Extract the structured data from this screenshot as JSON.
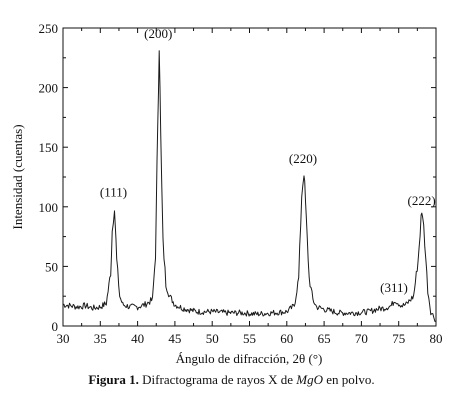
{
  "chart_data": {
    "type": "line",
    "xlabel": "Ángulo de difracción, 2θ (°)",
    "ylabel": "Intensidad (cuentas)",
    "xlim": [
      30,
      80
    ],
    "ylim": [
      0,
      250
    ],
    "x_ticks": [
      30,
      35,
      40,
      45,
      50,
      55,
      60,
      65,
      70,
      75,
      80
    ],
    "y_ticks": [
      0,
      50,
      100,
      150,
      200,
      250
    ],
    "x_tick_labels": [
      "30",
      "35",
      "40",
      "45",
      "50",
      "55",
      "60",
      "65",
      "70",
      "75",
      "80"
    ],
    "y_tick_labels": [
      "0",
      "50",
      "100",
      "150",
      "200",
      "250"
    ],
    "grid": false,
    "series": [
      {
        "color": "#1a1a1a",
        "x": [
          30,
          31,
          32,
          33,
          34,
          35,
          35.8,
          36.4,
          36.6,
          36.9,
          37.2,
          37.6,
          38,
          39,
          40,
          41,
          42,
          42.4,
          42.7,
          42.9,
          43.1,
          43.4,
          43.8,
          44.3,
          45,
          46,
          48,
          50,
          52,
          54,
          56,
          58,
          60,
          61,
          61.6,
          62,
          62.3,
          62.6,
          63,
          63.5,
          64,
          65,
          67,
          69,
          71,
          72,
          73,
          74,
          74.5,
          75,
          75.5,
          76,
          77,
          77.6,
          78,
          78.2,
          78.5,
          78.9,
          79.3,
          79.7,
          80
        ],
        "y": [
          18,
          17,
          16,
          17,
          15,
          16,
          19,
          45,
          80,
          102,
          55,
          25,
          18,
          16,
          16,
          18,
          22,
          60,
          170,
          235,
          160,
          70,
          35,
          25,
          18,
          15,
          12,
          12,
          11,
          11,
          10,
          11,
          12,
          17,
          40,
          110,
          130,
          90,
          40,
          22,
          16,
          14,
          11,
          11,
          12,
          14,
          15,
          17,
          22,
          19,
          17,
          18,
          25,
          55,
          90,
          95,
          70,
          30,
          12,
          8,
          4
        ]
      }
    ],
    "annotations": [
      {
        "text": "(111)",
        "x": 36.9,
        "y": 102
      },
      {
        "text": "(200)",
        "x": 42.9,
        "y": 235
      },
      {
        "text": "(220)",
        "x": 62.3,
        "y": 130
      },
      {
        "text": "(311)",
        "x": 74.5,
        "y": 22
      },
      {
        "text": "(222)",
        "x": 78.2,
        "y": 95
      }
    ]
  },
  "caption": {
    "label": "Figura 1.",
    "text_before": " Difractograma de rayos X de ",
    "compound": "MgO",
    "text_after": " en polvo."
  }
}
